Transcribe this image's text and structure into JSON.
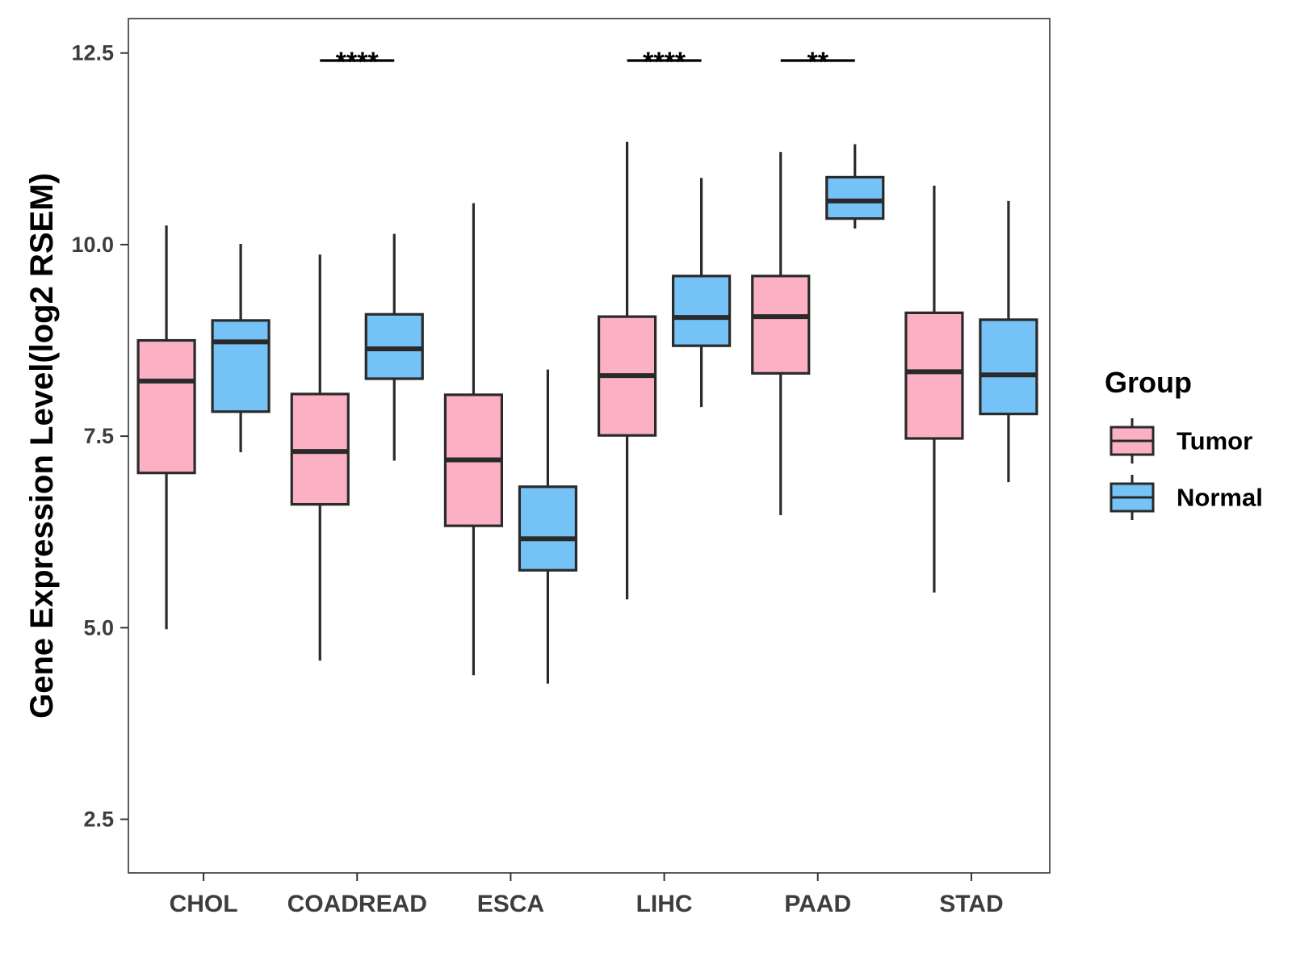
{
  "chart_data": {
    "type": "boxplot",
    "title": "",
    "xlabel": "",
    "ylabel": "Gene Expression Level(log2 RSEM)",
    "ylim": [
      1.8,
      12.95
    ],
    "yticks": [
      2.5,
      5.0,
      7.5,
      10.0,
      12.5
    ],
    "ytick_labels": [
      "2.5",
      "5.0",
      "7.5",
      "10.0",
      "12.5"
    ],
    "categories": [
      "CHOL",
      "COADREAD",
      "ESCA",
      "LIHC",
      "PAAD",
      "STAD"
    ],
    "legend": {
      "title": "Group",
      "position": "right",
      "entries": [
        "Tumor",
        "Normal"
      ]
    },
    "series": [
      {
        "name": "Tumor",
        "color": "#FBB1C3",
        "boxes": [
          {
            "whislo": 4.98,
            "q1": 7.02,
            "med": 8.22,
            "q3": 8.75,
            "whishi": 10.25
          },
          {
            "whislo": 4.57,
            "q1": 6.61,
            "med": 7.3,
            "q3": 8.05,
            "whishi": 9.87
          },
          {
            "whislo": 4.38,
            "q1": 6.33,
            "med": 7.19,
            "q3": 8.04,
            "whishi": 10.54
          },
          {
            "whislo": 5.37,
            "q1": 7.51,
            "med": 8.29,
            "q3": 9.06,
            "whishi": 11.34
          },
          {
            "whislo": 6.47,
            "q1": 8.32,
            "med": 9.06,
            "q3": 9.59,
            "whishi": 11.21
          },
          {
            "whislo": 5.46,
            "q1": 7.47,
            "med": 8.34,
            "q3": 9.11,
            "whishi": 10.77
          }
        ]
      },
      {
        "name": "Normal",
        "color": "#75C2F7",
        "boxes": [
          {
            "whislo": 7.29,
            "q1": 7.82,
            "med": 8.73,
            "q3": 9.01,
            "whishi": 10.01
          },
          {
            "whislo": 7.18,
            "q1": 8.25,
            "med": 8.64,
            "q3": 9.09,
            "whishi": 10.14
          },
          {
            "whislo": 4.27,
            "q1": 5.75,
            "med": 6.16,
            "q3": 6.84,
            "whishi": 8.37
          },
          {
            "whislo": 7.88,
            "q1": 8.68,
            "med": 9.05,
            "q3": 9.59,
            "whishi": 10.87
          },
          {
            "whislo": 10.21,
            "q1": 10.34,
            "med": 10.57,
            "q3": 10.88,
            "whishi": 11.31
          },
          {
            "whislo": 6.9,
            "q1": 7.79,
            "med": 8.3,
            "q3": 9.02,
            "whishi": 10.57
          }
        ]
      }
    ],
    "significance": [
      {
        "category": "COADREAD",
        "label": "****"
      },
      {
        "category": "LIHC",
        "label": "****"
      },
      {
        "category": "PAAD",
        "label": "**"
      }
    ]
  }
}
